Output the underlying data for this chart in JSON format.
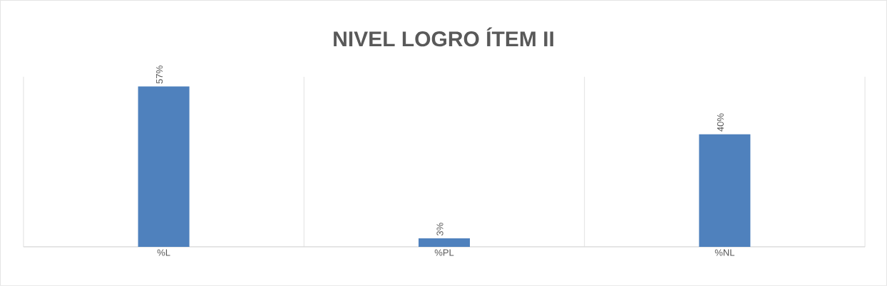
{
  "chart_data": {
    "type": "bar",
    "title": "NIVEL LOGRO ÍTEM II",
    "categories": [
      "%L",
      "%PL",
      "%NL"
    ],
    "values": [
      57,
      3,
      40
    ],
    "value_labels": [
      "57%",
      "3%",
      "40%"
    ],
    "color": "#4f81bd",
    "grid": "x"
  }
}
